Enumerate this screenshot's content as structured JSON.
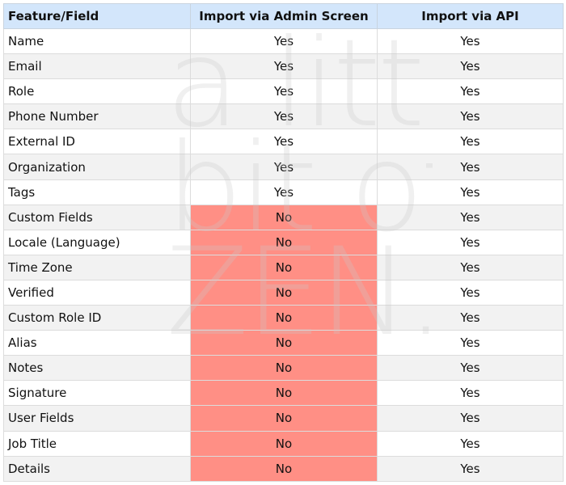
{
  "table": {
    "headers": [
      "Feature/Field",
      "Import via Admin Screen",
      "Import via API"
    ],
    "rows": [
      {
        "feature": "Name",
        "admin": "Yes",
        "api": "Yes"
      },
      {
        "feature": "Email",
        "admin": "Yes",
        "api": "Yes"
      },
      {
        "feature": "Role",
        "admin": "Yes",
        "api": "Yes"
      },
      {
        "feature": "Phone Number",
        "admin": "Yes",
        "api": "Yes"
      },
      {
        "feature": "External ID",
        "admin": "Yes",
        "api": "Yes"
      },
      {
        "feature": "Organization",
        "admin": "Yes",
        "api": "Yes"
      },
      {
        "feature": "Tags",
        "admin": "Yes",
        "api": "Yes"
      },
      {
        "feature": "Custom Fields",
        "admin": "No",
        "api": "Yes"
      },
      {
        "feature": "Locale (Language)",
        "admin": "No",
        "api": "Yes"
      },
      {
        "feature": "Time Zone",
        "admin": "No",
        "api": "Yes"
      },
      {
        "feature": "Verified",
        "admin": "No",
        "api": "Yes"
      },
      {
        "feature": "Custom Role ID",
        "admin": "No",
        "api": "Yes"
      },
      {
        "feature": "Alias",
        "admin": "No",
        "api": "Yes"
      },
      {
        "feature": "Notes",
        "admin": "No",
        "api": "Yes"
      },
      {
        "feature": "Signature",
        "admin": "No",
        "api": "Yes"
      },
      {
        "feature": "User Fields",
        "admin": "No",
        "api": "Yes"
      },
      {
        "feature": "Job Title",
        "admin": "No",
        "api": "Yes"
      },
      {
        "feature": "Details",
        "admin": "No",
        "api": "Yes"
      }
    ]
  },
  "watermark": {
    "lines": [
      "a little",
      "bit of",
      "ZEN."
    ]
  },
  "colors": {
    "header_bg": "#d3e6fb",
    "no_highlight": "#ff8f85",
    "stripe": "#f2f2f2"
  }
}
